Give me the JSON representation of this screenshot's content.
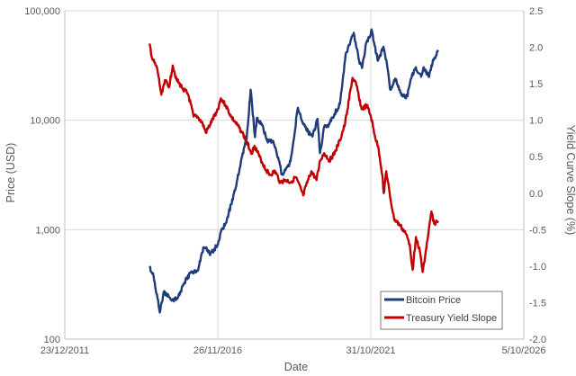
{
  "chart_data": {
    "type": "line",
    "xlabel": "Date",
    "ylabel_left": "Price (USD)",
    "ylabel_right": "Yield Curve Slope (%)",
    "x_ticks": [
      "23/12/2011",
      "26/11/2016",
      "31/10/2021",
      "5/10/2026"
    ],
    "x_range": [
      "2011-12-23",
      "2026-10-05"
    ],
    "y_left": {
      "scale": "log",
      "range": [
        100,
        100000
      ],
      "ticks": [
        "100",
        "1,000",
        "10,000",
        "100,000"
      ]
    },
    "y_right": {
      "range": [
        -2.0,
        2.5
      ],
      "ticks": [
        "2.5",
        "2.0",
        "1.5",
        "1.0",
        "0.5",
        "0.0",
        "-0.5",
        "-1.0",
        "-1.5",
        "-2.0"
      ]
    },
    "gridlines": {
      "horizontal": true,
      "vertical": true
    },
    "legend": {
      "position": "bottom-right"
    },
    "series": [
      {
        "name": "Bitcoin Price",
        "axis": "left",
        "color": "#1f3b7a",
        "points": [
          [
            "2014-09-15",
            450
          ],
          [
            "2014-11-01",
            380
          ],
          [
            "2015-01-14",
            175
          ],
          [
            "2015-03-01",
            270
          ],
          [
            "2015-06-01",
            225
          ],
          [
            "2015-08-15",
            240
          ],
          [
            "2015-11-01",
            330
          ],
          [
            "2016-01-15",
            410
          ],
          [
            "2016-04-01",
            420
          ],
          [
            "2016-06-15",
            690
          ],
          [
            "2016-09-01",
            600
          ],
          [
            "2016-11-26",
            730
          ],
          [
            "2017-01-01",
            950
          ],
          [
            "2017-03-01",
            1150
          ],
          [
            "2017-05-01",
            1700
          ],
          [
            "2017-07-01",
            2500
          ],
          [
            "2017-09-01",
            4500
          ],
          [
            "2017-11-01",
            6800
          ],
          [
            "2017-12-17",
            19000
          ],
          [
            "2018-02-06",
            7000
          ],
          [
            "2018-03-01",
            10500
          ],
          [
            "2018-05-01",
            9000
          ],
          [
            "2018-07-01",
            6500
          ],
          [
            "2018-09-01",
            6500
          ],
          [
            "2018-11-20",
            4200
          ],
          [
            "2018-12-15",
            3200
          ],
          [
            "2019-02-01",
            3500
          ],
          [
            "2019-04-01",
            4200
          ],
          [
            "2019-06-26",
            13000
          ],
          [
            "2019-08-01",
            10500
          ],
          [
            "2019-10-01",
            8300
          ],
          [
            "2019-12-15",
            7100
          ],
          [
            "2020-02-12",
            10300
          ],
          [
            "2020-03-12",
            5000
          ],
          [
            "2020-05-01",
            8700
          ],
          [
            "2020-07-01",
            9200
          ],
          [
            "2020-09-01",
            11500
          ],
          [
            "2020-11-01",
            14000
          ],
          [
            "2021-01-08",
            40000
          ],
          [
            "2021-03-01",
            50000
          ],
          [
            "2021-04-14",
            63000
          ],
          [
            "2021-06-15",
            35000
          ],
          [
            "2021-07-20",
            30000
          ],
          [
            "2021-09-07",
            51000
          ],
          [
            "2021-10-31",
            61000
          ],
          [
            "2021-11-10",
            67500
          ],
          [
            "2021-12-15",
            48000
          ],
          [
            "2022-01-24",
            35000
          ],
          [
            "2022-03-28",
            47000
          ],
          [
            "2022-05-15",
            30000
          ],
          [
            "2022-06-18",
            19000
          ],
          [
            "2022-08-15",
            24000
          ],
          [
            "2022-11-09",
            16500
          ],
          [
            "2023-01-01",
            16500
          ],
          [
            "2023-02-15",
            24000
          ],
          [
            "2023-04-14",
            30500
          ],
          [
            "2023-06-15",
            25000
          ],
          [
            "2023-07-15",
            30500
          ],
          [
            "2023-09-11",
            25000
          ],
          [
            "2023-11-15",
            37000
          ],
          [
            "2024-01-01",
            42000
          ]
        ]
      },
      {
        "name": "Treasury Yield Slope",
        "axis": "right",
        "color": "#c00000",
        "points": [
          [
            "2014-09-15",
            2.05
          ],
          [
            "2014-10-15",
            1.85
          ],
          [
            "2014-12-15",
            1.7
          ],
          [
            "2015-02-01",
            1.35
          ],
          [
            "2015-03-15",
            1.55
          ],
          [
            "2015-05-01",
            1.45
          ],
          [
            "2015-06-15",
            1.75
          ],
          [
            "2015-08-01",
            1.55
          ],
          [
            "2015-10-01",
            1.45
          ],
          [
            "2015-12-15",
            1.35
          ],
          [
            "2016-02-15",
            1.05
          ],
          [
            "2016-04-01",
            1.05
          ],
          [
            "2016-06-01",
            0.95
          ],
          [
            "2016-07-08",
            0.83
          ],
          [
            "2016-09-01",
            0.95
          ],
          [
            "2016-11-26",
            1.15
          ],
          [
            "2017-01-01",
            1.3
          ],
          [
            "2017-03-01",
            1.2
          ],
          [
            "2017-05-01",
            1.05
          ],
          [
            "2017-07-01",
            0.95
          ],
          [
            "2017-09-01",
            0.85
          ],
          [
            "2017-11-01",
            0.7
          ],
          [
            "2017-12-31",
            0.55
          ],
          [
            "2018-02-01",
            0.65
          ],
          [
            "2018-04-01",
            0.5
          ],
          [
            "2018-06-01",
            0.35
          ],
          [
            "2018-08-01",
            0.25
          ],
          [
            "2018-10-01",
            0.3
          ],
          [
            "2018-12-01",
            0.15
          ],
          [
            "2019-02-01",
            0.18
          ],
          [
            "2019-04-01",
            0.15
          ],
          [
            "2019-06-01",
            0.22
          ],
          [
            "2019-08-28",
            -0.03
          ],
          [
            "2019-10-01",
            0.1
          ],
          [
            "2019-12-01",
            0.3
          ],
          [
            "2020-02-01",
            0.18
          ],
          [
            "2020-03-15",
            0.45
          ],
          [
            "2020-05-01",
            0.55
          ],
          [
            "2020-07-01",
            0.45
          ],
          [
            "2020-09-01",
            0.55
          ],
          [
            "2020-11-01",
            0.72
          ],
          [
            "2021-01-01",
            0.95
          ],
          [
            "2021-03-30",
            1.58
          ],
          [
            "2021-05-15",
            1.48
          ],
          [
            "2021-07-15",
            1.15
          ],
          [
            "2021-09-15",
            1.2
          ],
          [
            "2021-11-01",
            1.05
          ],
          [
            "2021-12-15",
            0.8
          ],
          [
            "2022-02-01",
            0.6
          ],
          [
            "2022-03-15",
            0.25
          ],
          [
            "2022-04-01",
            0.0
          ],
          [
            "2022-05-01",
            0.3
          ],
          [
            "2022-06-15",
            -0.05
          ],
          [
            "2022-08-01",
            -0.35
          ],
          [
            "2022-10-15",
            -0.45
          ],
          [
            "2022-12-15",
            -0.55
          ],
          [
            "2023-02-01",
            -0.7
          ],
          [
            "2023-03-08",
            -1.05
          ],
          [
            "2023-04-15",
            -0.6
          ],
          [
            "2023-06-01",
            -0.8
          ],
          [
            "2023-07-03",
            -1.08
          ],
          [
            "2023-08-15",
            -0.75
          ],
          [
            "2023-10-15",
            -0.25
          ],
          [
            "2023-11-15",
            -0.42
          ],
          [
            "2024-01-01",
            -0.38
          ]
        ]
      }
    ]
  }
}
